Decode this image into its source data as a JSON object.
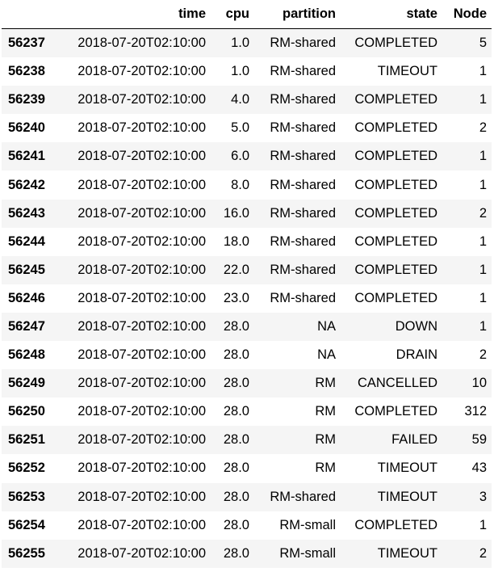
{
  "columns": [
    "",
    "time",
    "cpu",
    "partition",
    "state",
    "Node"
  ],
  "rows": [
    {
      "index": "56237",
      "time": "2018-07-20T02:10:00",
      "cpu": "1.0",
      "partition": "RM-shared",
      "state": "COMPLETED",
      "node": "5"
    },
    {
      "index": "56238",
      "time": "2018-07-20T02:10:00",
      "cpu": "1.0",
      "partition": "RM-shared",
      "state": "TIMEOUT",
      "node": "1"
    },
    {
      "index": "56239",
      "time": "2018-07-20T02:10:00",
      "cpu": "4.0",
      "partition": "RM-shared",
      "state": "COMPLETED",
      "node": "1"
    },
    {
      "index": "56240",
      "time": "2018-07-20T02:10:00",
      "cpu": "5.0",
      "partition": "RM-shared",
      "state": "COMPLETED",
      "node": "2"
    },
    {
      "index": "56241",
      "time": "2018-07-20T02:10:00",
      "cpu": "6.0",
      "partition": "RM-shared",
      "state": "COMPLETED",
      "node": "1"
    },
    {
      "index": "56242",
      "time": "2018-07-20T02:10:00",
      "cpu": "8.0",
      "partition": "RM-shared",
      "state": "COMPLETED",
      "node": "1"
    },
    {
      "index": "56243",
      "time": "2018-07-20T02:10:00",
      "cpu": "16.0",
      "partition": "RM-shared",
      "state": "COMPLETED",
      "node": "2"
    },
    {
      "index": "56244",
      "time": "2018-07-20T02:10:00",
      "cpu": "18.0",
      "partition": "RM-shared",
      "state": "COMPLETED",
      "node": "1"
    },
    {
      "index": "56245",
      "time": "2018-07-20T02:10:00",
      "cpu": "22.0",
      "partition": "RM-shared",
      "state": "COMPLETED",
      "node": "1"
    },
    {
      "index": "56246",
      "time": "2018-07-20T02:10:00",
      "cpu": "23.0",
      "partition": "RM-shared",
      "state": "COMPLETED",
      "node": "1"
    },
    {
      "index": "56247",
      "time": "2018-07-20T02:10:00",
      "cpu": "28.0",
      "partition": "NA",
      "state": "DOWN",
      "node": "1"
    },
    {
      "index": "56248",
      "time": "2018-07-20T02:10:00",
      "cpu": "28.0",
      "partition": "NA",
      "state": "DRAIN",
      "node": "2"
    },
    {
      "index": "56249",
      "time": "2018-07-20T02:10:00",
      "cpu": "28.0",
      "partition": "RM",
      "state": "CANCELLED",
      "node": "10"
    },
    {
      "index": "56250",
      "time": "2018-07-20T02:10:00",
      "cpu": "28.0",
      "partition": "RM",
      "state": "COMPLETED",
      "node": "312"
    },
    {
      "index": "56251",
      "time": "2018-07-20T02:10:00",
      "cpu": "28.0",
      "partition": "RM",
      "state": "FAILED",
      "node": "59"
    },
    {
      "index": "56252",
      "time": "2018-07-20T02:10:00",
      "cpu": "28.0",
      "partition": "RM",
      "state": "TIMEOUT",
      "node": "43"
    },
    {
      "index": "56253",
      "time": "2018-07-20T02:10:00",
      "cpu": "28.0",
      "partition": "RM-shared",
      "state": "TIMEOUT",
      "node": "3"
    },
    {
      "index": "56254",
      "time": "2018-07-20T02:10:00",
      "cpu": "28.0",
      "partition": "RM-small",
      "state": "COMPLETED",
      "node": "1"
    },
    {
      "index": "56255",
      "time": "2018-07-20T02:10:00",
      "cpu": "28.0",
      "partition": "RM-small",
      "state": "TIMEOUT",
      "node": "2"
    }
  ]
}
